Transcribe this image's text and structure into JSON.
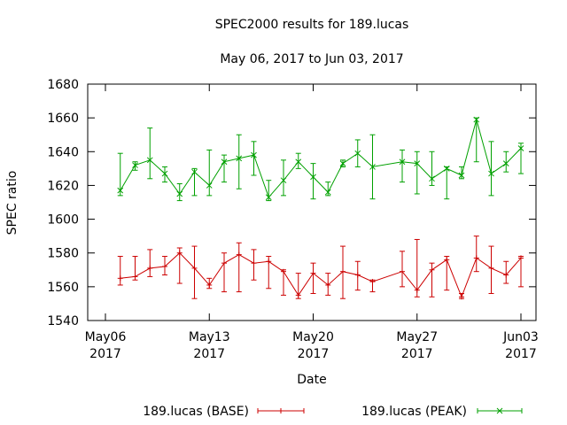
{
  "chart_data": {
    "type": "line",
    "title": "SPEC2000 results for 189.lucas",
    "subtitle": "May 06, 2017 to Jun 03, 2017",
    "xlabel": "Date",
    "ylabel": "SPEC ratio",
    "ylim": [
      1540,
      1680
    ],
    "yticks": [
      1540,
      1560,
      1580,
      1600,
      1620,
      1640,
      1660,
      1680
    ],
    "xlim": [
      "2017-05-06",
      "2017-06-03"
    ],
    "xticks": [
      {
        "date": "2017-05-06",
        "label1": "May06",
        "label2": "2017"
      },
      {
        "date": "2017-05-13",
        "label1": "May13",
        "label2": "2017"
      },
      {
        "date": "2017-05-20",
        "label1": "May20",
        "label2": "2017"
      },
      {
        "date": "2017-05-27",
        "label1": "May27",
        "label2": "2017"
      },
      {
        "date": "2017-06-03",
        "label1": "Jun03",
        "label2": "2017"
      }
    ],
    "grid": false,
    "legend_placement": "bottom",
    "series": [
      {
        "name": "189.lucas (BASE)",
        "color": "#cc0000",
        "points": [
          {
            "x": "2017-05-07",
            "y": 1565,
            "low": 1561,
            "high": 1578
          },
          {
            "x": "2017-05-08",
            "y": 1566,
            "low": 1564,
            "high": 1578
          },
          {
            "x": "2017-05-09",
            "y": 1571,
            "low": 1566,
            "high": 1582
          },
          {
            "x": "2017-05-10",
            "y": 1572,
            "low": 1567,
            "high": 1578
          },
          {
            "x": "2017-05-11",
            "y": 1580,
            "low": 1562,
            "high": 1583
          },
          {
            "x": "2017-05-12",
            "y": 1571,
            "low": 1553,
            "high": 1584
          },
          {
            "x": "2017-05-13",
            "y": 1561,
            "low": 1559,
            "high": 1565
          },
          {
            "x": "2017-05-14",
            "y": 1574,
            "low": 1557,
            "high": 1580
          },
          {
            "x": "2017-05-15",
            "y": 1579,
            "low": 1557,
            "high": 1586
          },
          {
            "x": "2017-05-16",
            "y": 1574,
            "low": 1564,
            "high": 1582
          },
          {
            "x": "2017-05-17",
            "y": 1575,
            "low": 1559,
            "high": 1578
          },
          {
            "x": "2017-05-18",
            "y": 1569,
            "low": 1555,
            "high": 1570
          },
          {
            "x": "2017-05-19",
            "y": 1555,
            "low": 1553,
            "high": 1568
          },
          {
            "x": "2017-05-20",
            "y": 1568,
            "low": 1556,
            "high": 1574
          },
          {
            "x": "2017-05-21",
            "y": 1561,
            "low": 1555,
            "high": 1568
          },
          {
            "x": "2017-05-22",
            "y": 1569,
            "low": 1553,
            "high": 1584
          },
          {
            "x": "2017-05-23",
            "y": 1567,
            "low": 1558,
            "high": 1575
          },
          {
            "x": "2017-05-24",
            "y": 1563,
            "low": 1557,
            "high": 1564
          },
          {
            "x": "2017-05-26",
            "y": 1569,
            "low": 1560,
            "high": 1581
          },
          {
            "x": "2017-05-27",
            "y": 1558,
            "low": 1554,
            "high": 1588
          },
          {
            "x": "2017-05-28",
            "y": 1570,
            "low": 1554,
            "high": 1574
          },
          {
            "x": "2017-05-29",
            "y": 1576,
            "low": 1558,
            "high": 1578
          },
          {
            "x": "2017-05-30",
            "y": 1554,
            "low": 1553,
            "high": 1556
          },
          {
            "x": "2017-05-31",
            "y": 1577,
            "low": 1569,
            "high": 1590
          },
          {
            "x": "2017-06-01",
            "y": 1571,
            "low": 1556,
            "high": 1584
          },
          {
            "x": "2017-06-02",
            "y": 1567,
            "low": 1562,
            "high": 1575
          },
          {
            "x": "2017-06-03",
            "y": 1577,
            "low": 1560,
            "high": 1578
          }
        ]
      },
      {
        "name": "189.lucas (PEAK)",
        "color": "#00a000",
        "points": [
          {
            "x": "2017-05-07",
            "y": 1617,
            "low": 1614,
            "high": 1639
          },
          {
            "x": "2017-05-08",
            "y": 1632,
            "low": 1629,
            "high": 1634
          },
          {
            "x": "2017-05-09",
            "y": 1635,
            "low": 1624,
            "high": 1654
          },
          {
            "x": "2017-05-10",
            "y": 1627,
            "low": 1622,
            "high": 1631
          },
          {
            "x": "2017-05-11",
            "y": 1615,
            "low": 1611,
            "high": 1621
          },
          {
            "x": "2017-05-12",
            "y": 1628,
            "low": 1614,
            "high": 1630
          },
          {
            "x": "2017-05-13",
            "y": 1620,
            "low": 1614,
            "high": 1641
          },
          {
            "x": "2017-05-14",
            "y": 1634,
            "low": 1622,
            "high": 1638
          },
          {
            "x": "2017-05-15",
            "y": 1636,
            "low": 1618,
            "high": 1650
          },
          {
            "x": "2017-05-16",
            "y": 1638,
            "low": 1626,
            "high": 1646
          },
          {
            "x": "2017-05-17",
            "y": 1613,
            "low": 1611,
            "high": 1623
          },
          {
            "x": "2017-05-18",
            "y": 1623,
            "low": 1614,
            "high": 1635
          },
          {
            "x": "2017-05-19",
            "y": 1634,
            "low": 1630,
            "high": 1639
          },
          {
            "x": "2017-05-20",
            "y": 1625,
            "low": 1612,
            "high": 1633
          },
          {
            "x": "2017-05-21",
            "y": 1616,
            "low": 1614,
            "high": 1622
          },
          {
            "x": "2017-05-22",
            "y": 1633,
            "low": 1631,
            "high": 1635
          },
          {
            "x": "2017-05-23",
            "y": 1639,
            "low": 1631,
            "high": 1647
          },
          {
            "x": "2017-05-24",
            "y": 1631,
            "low": 1612,
            "high": 1650
          },
          {
            "x": "2017-05-26",
            "y": 1634,
            "low": 1622,
            "high": 1641
          },
          {
            "x": "2017-05-27",
            "y": 1633,
            "low": 1615,
            "high": 1640
          },
          {
            "x": "2017-05-28",
            "y": 1624,
            "low": 1620,
            "high": 1640
          },
          {
            "x": "2017-05-29",
            "y": 1630,
            "low": 1612,
            "high": 1631
          },
          {
            "x": "2017-05-30",
            "y": 1626,
            "low": 1624,
            "high": 1631
          },
          {
            "x": "2017-05-31",
            "y": 1659,
            "low": 1634,
            "high": 1660
          },
          {
            "x": "2017-06-01",
            "y": 1627,
            "low": 1614,
            "high": 1646
          },
          {
            "x": "2017-06-02",
            "y": 1633,
            "low": 1628,
            "high": 1640
          },
          {
            "x": "2017-06-03",
            "y": 1642,
            "low": 1627,
            "high": 1645
          }
        ]
      }
    ]
  }
}
